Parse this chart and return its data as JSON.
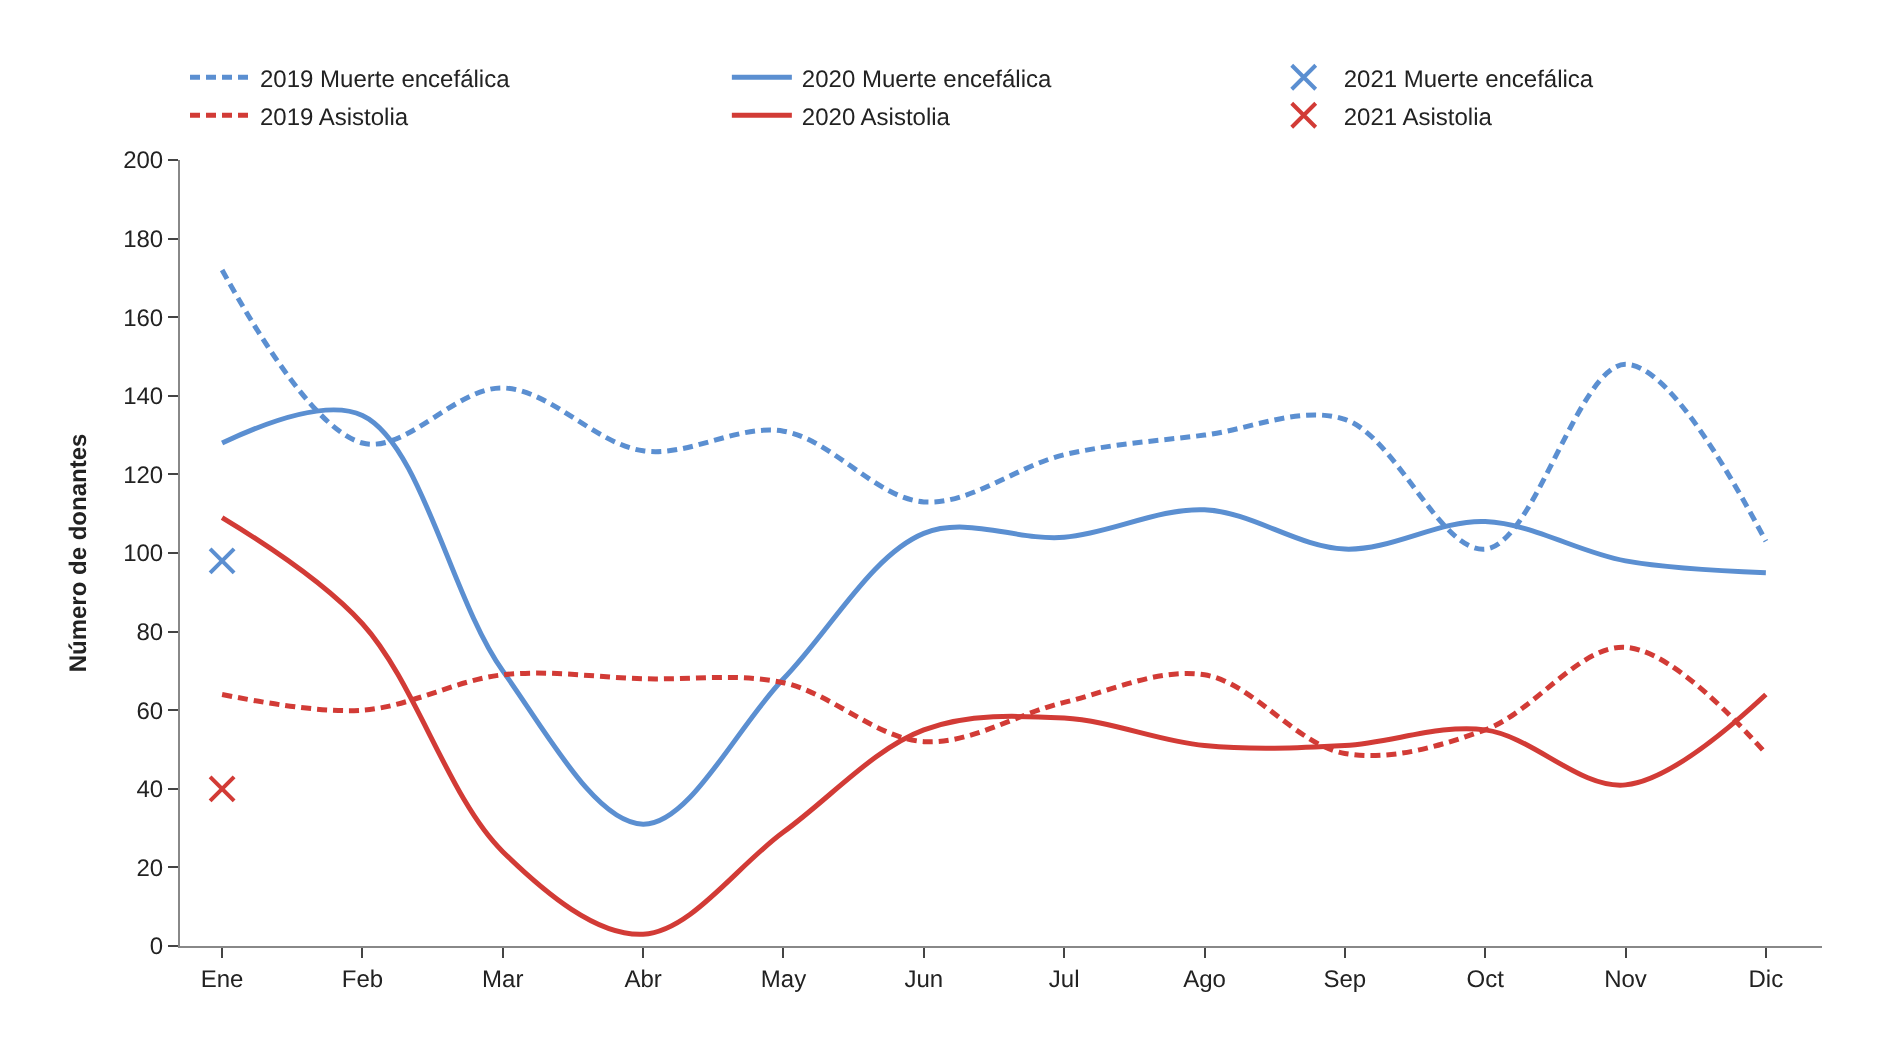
{
  "chart_data": {
    "type": "line",
    "ylabel": "Número de donantes",
    "categories": [
      "Ene",
      "Feb",
      "Mar",
      "Abr",
      "May",
      "Jun",
      "Jul",
      "Ago",
      "Sep",
      "Oct",
      "Nov",
      "Dic"
    ],
    "ylim": [
      0,
      200
    ],
    "yticks": [
      0,
      20,
      40,
      60,
      80,
      100,
      120,
      140,
      160,
      180,
      200
    ],
    "legend": "top",
    "marker": "none",
    "series": [
      {
        "name": "2019 Muerte encefálica",
        "color": "#5b8fd1",
        "line_style": "dashed",
        "values": [
          172,
          128,
          142,
          126,
          131,
          113,
          125,
          130,
          134,
          101,
          148,
          103
        ]
      },
      {
        "name": "2020 Muerte encefálica",
        "color": "#5b8fd1",
        "line_style": "solid",
        "values": [
          128,
          135,
          70,
          31,
          68,
          105,
          104,
          111,
          101,
          108,
          98,
          95
        ]
      },
      {
        "name": "2021 Muerte encefálica",
        "color": "#5b8fd1",
        "type": "scatter",
        "marker": "cross",
        "values": [
          98,
          null,
          null,
          null,
          null,
          null,
          null,
          null,
          null,
          null,
          null,
          null
        ]
      },
      {
        "name": "2019 Asistolia",
        "color": "#d23b36",
        "line_style": "dashed",
        "values": [
          64,
          60,
          69,
          68,
          67,
          52,
          62,
          69,
          49,
          55,
          76,
          49
        ]
      },
      {
        "name": "2020 Asistolia",
        "color": "#d23b36",
        "line_style": "solid",
        "values": [
          109,
          82,
          24,
          3,
          29,
          55,
          58,
          51,
          51,
          55,
          41,
          64
        ]
      },
      {
        "name": "2021 Asistolia",
        "color": "#d23b36",
        "type": "scatter",
        "marker": "cross",
        "values": [
          40,
          null,
          null,
          null,
          null,
          null,
          null,
          null,
          null,
          null,
          null,
          null
        ]
      }
    ]
  }
}
